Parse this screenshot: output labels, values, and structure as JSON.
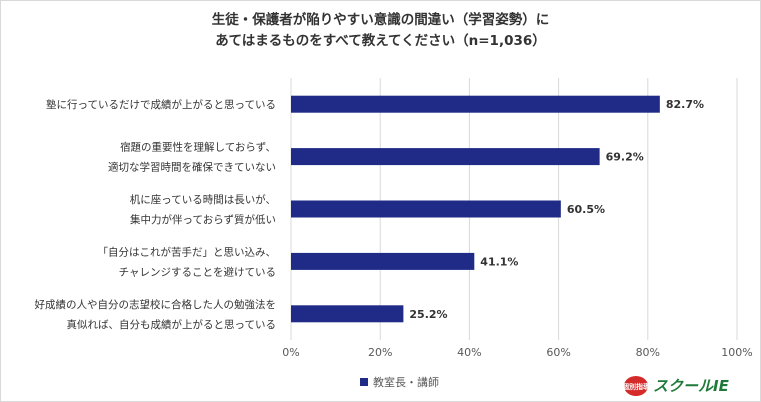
{
  "title_line1": "生徒・保護者が陥りやすい意識の間違い（学習姿勢）に",
  "title_line2": "あてはまるものをすべて教えてください（n=1,036）",
  "brand": {
    "badge": "個別指導",
    "name": "スクールIE"
  },
  "colors": {
    "bar": "#1f2b86",
    "grid": "#d9d9d9",
    "text": "#333333"
  },
  "chart_data": {
    "type": "bar",
    "orientation": "horizontal",
    "categories": [
      [
        "塾に行っているだけで成績が上がると思っている"
      ],
      [
        "宿題の重要性を理解しておらず、",
        "適切な学習時間を確保できていない"
      ],
      [
        "机に座っている時間は長いが、",
        "集中力が伴っておらず質が低い"
      ],
      [
        "「自分はこれが苦手だ」と思い込み、",
        "チャレンジすることを避けている"
      ],
      [
        "好成績の人や自分の志望校に合格した人の勉強法を",
        "真似れば、自分も成績が上がると思っている"
      ]
    ],
    "series": [
      {
        "name": "教室長・講師",
        "values": [
          82.7,
          69.2,
          60.5,
          41.1,
          25.2
        ]
      }
    ],
    "value_labels": [
      "82.7%",
      "69.2%",
      "60.5%",
      "41.1%",
      "25.2%"
    ],
    "xlim": [
      0,
      100
    ],
    "xticks": [
      "0%",
      "20%",
      "40%",
      "60%",
      "80%",
      "100%"
    ],
    "grid": true,
    "legend": "bottom"
  }
}
